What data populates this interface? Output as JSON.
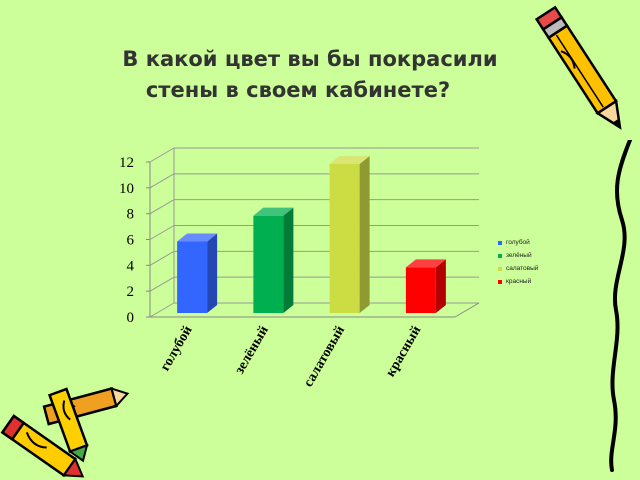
{
  "slide": {
    "title_line1": "В какой цвет вы бы покрасили",
    "title_line2": "стены в своем кабинете?"
  },
  "chart_data": {
    "type": "bar",
    "categories": [
      "голубой",
      "зелёный",
      "салатовый",
      "красный"
    ],
    "values": [
      6,
      8,
      12,
      4
    ],
    "ylim": [
      0,
      12
    ],
    "yticks": [
      "0",
      "2",
      "4",
      "6",
      "8",
      "10",
      "12"
    ],
    "grid": true,
    "style": "3d",
    "legend": {
      "placement": "right",
      "items": [
        "голубой",
        "зелёный",
        "салатовый",
        "красный"
      ]
    },
    "colors": [
      "#3366ff",
      "#00b050",
      "#ccdd44",
      "#ff0000"
    ]
  },
  "decor": [
    "pencil-icon",
    "crayons-icon",
    "squiggle-line"
  ]
}
